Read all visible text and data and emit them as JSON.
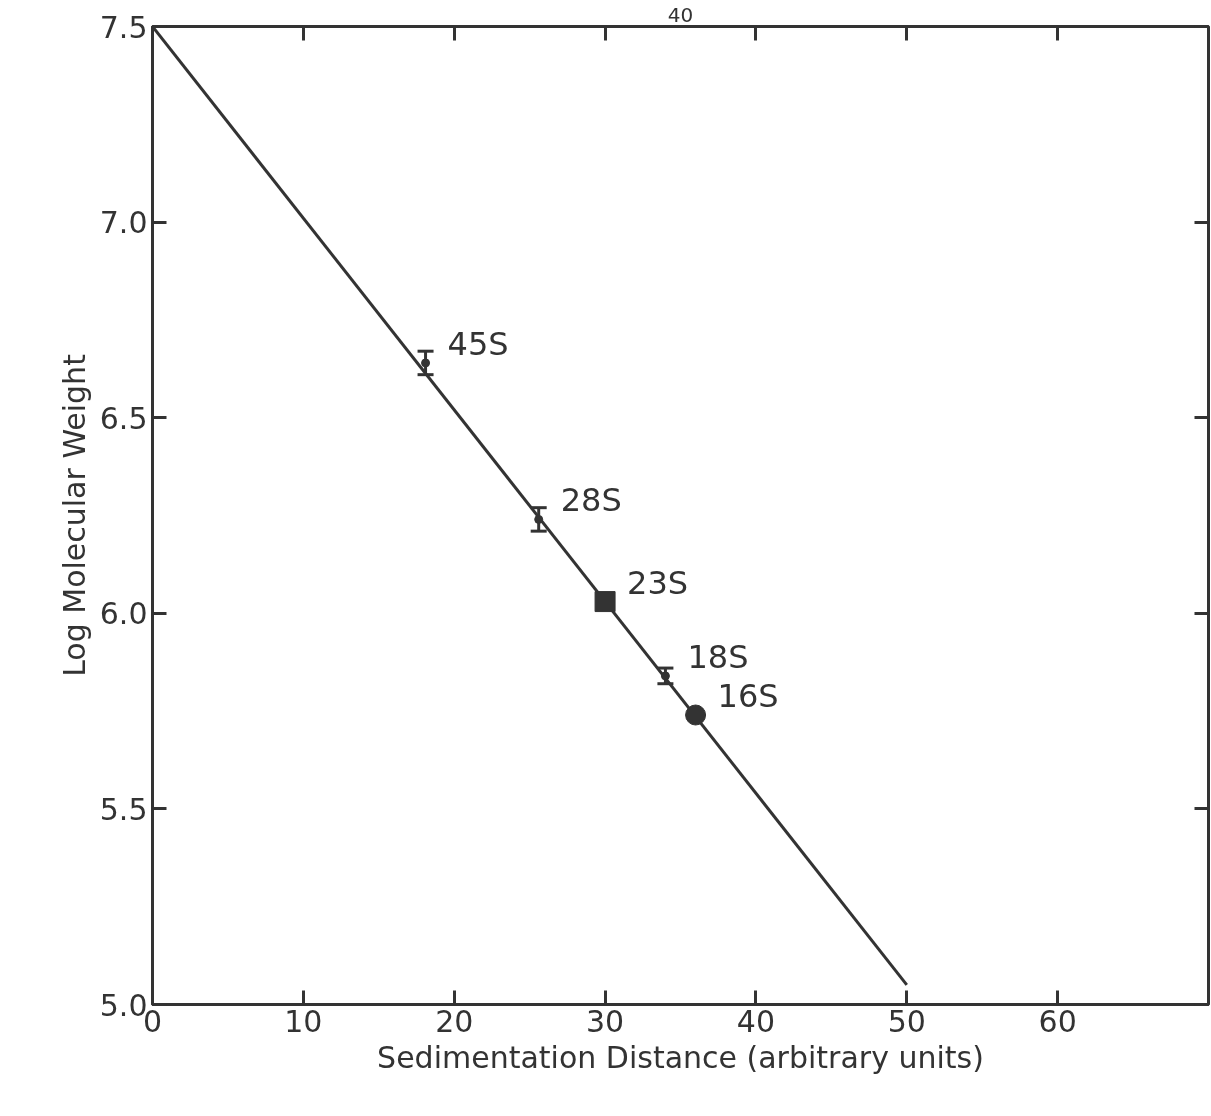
{
  "chart_data": {
    "type": "scatter",
    "xlabel": "Sedimentation Distance (arbitrary units)",
    "ylabel": "Log Molecular Weight",
    "xlim": [
      0,
      70
    ],
    "ylim": [
      5.0,
      7.5
    ],
    "xticks": [
      0,
      10,
      20,
      30,
      40,
      50,
      60
    ],
    "yticks": [
      {
        "value": 5.0,
        "label": "5.0"
      },
      5.5,
      {
        "value": 6.0,
        "label": "6.0"
      },
      6.5,
      {
        "value": 7.0,
        "label": "7.0"
      },
      7.5
    ],
    "grid": false,
    "series": [
      {
        "type": "line",
        "color": "#333333",
        "x": [
          0,
          50
        ],
        "values": [
          7.5,
          5.05
        ],
        "marker": "none"
      },
      {
        "color": "#333333",
        "marker": "circle",
        "x": [
          18.1,
          25.6,
          34.0
        ],
        "values": [
          6.64,
          6.24,
          5.84
        ],
        "errors": [
          [
            6.61,
            6.67
          ],
          [
            6.21,
            6.27
          ],
          [
            5.82,
            5.86
          ]
        ]
      },
      {
        "color": "#333333",
        "marker": "square",
        "x": [
          30.0
        ],
        "values": [
          6.03
        ]
      },
      {
        "color": "#333333",
        "marker": "circle",
        "x": [
          36.0
        ],
        "values": [
          5.74
        ]
      }
    ],
    "annotations": [
      "40",
      {
        "text": "45S",
        "x": 18.1,
        "y": 6.64
      },
      {
        "text": "28S",
        "x": 25.6,
        "y": 6.24
      },
      {
        "text": "23S",
        "x": 30.0,
        "y": 6.03
      },
      {
        "text": "18S",
        "x": 34.0,
        "y": 5.84
      },
      {
        "text": "16S",
        "x": 36.0,
        "y": 5.74
      }
    ]
  }
}
